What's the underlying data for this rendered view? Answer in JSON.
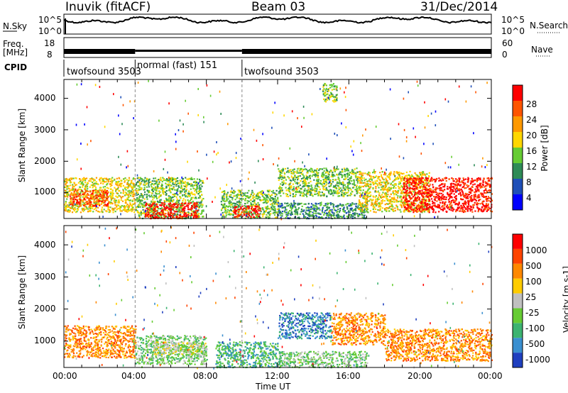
{
  "header": {
    "station": "Inuvik (fitACF)",
    "beam": "Beam 03",
    "date": "31/Dec/2014"
  },
  "top_panels": {
    "nsky_label": "N.Sky",
    "nsky_ticks": [
      "10^5",
      "10^0"
    ],
    "nsearch_label": "N.Search",
    "nsearch_ticks": [
      "10^5",
      "10^0"
    ],
    "freq_label_1": "Freq.",
    "freq_label_2": "[MHz]",
    "freq_ticks": [
      "18",
      "8"
    ],
    "nave_label": "Nave",
    "nave_ticks": [
      "60",
      "0"
    ],
    "cpid_label": "CPID",
    "cpid_segments": [
      {
        "label": "twofsound 3503",
        "start_h": 0,
        "end_h": 4
      },
      {
        "label": "normal (fast) 151",
        "start_h": 4,
        "end_h": 10
      },
      {
        "label": "twofsound 3503",
        "start_h": 10,
        "end_h": 24
      }
    ]
  },
  "chart_data": [
    {
      "type": "heatmap",
      "title": "",
      "xlabel": "",
      "ylabel": "Slant Range [km]",
      "xlim": [
        0,
        24
      ],
      "ylim": [
        180,
        4600
      ],
      "yticks": [
        "1000",
        "2000",
        "3000",
        "4000"
      ],
      "colorbar_label": "Power [dB]",
      "colorbar_ticks": [
        "28",
        "24",
        "20",
        "16",
        "12",
        "8",
        "4"
      ],
      "colorbar_colors": [
        "#0000ff",
        "#1f4fb8",
        "#2e8b57",
        "#66cc33",
        "#ffd700",
        "#ff9900",
        "#ff5500",
        "#ff0000"
      ],
      "regions": [
        {
          "t0": 0.0,
          "t1": 4.0,
          "r0": 400,
          "r1": 1500,
          "level": 4
        },
        {
          "t0": 0.3,
          "t1": 2.5,
          "r0": 600,
          "r1": 1100,
          "level": 6
        },
        {
          "t0": 4.0,
          "t1": 7.8,
          "r0": 200,
          "r1": 1500,
          "level": 3
        },
        {
          "t0": 4.5,
          "t1": 7.5,
          "r0": 200,
          "r1": 700,
          "level": 7
        },
        {
          "t0": 8.8,
          "t1": 12.0,
          "r0": 200,
          "r1": 1100,
          "level": 3
        },
        {
          "t0": 9.5,
          "t1": 11.0,
          "r0": 250,
          "r1": 600,
          "level": 7
        },
        {
          "t0": 12.0,
          "t1": 16.5,
          "r0": 900,
          "r1": 1800,
          "level": 3
        },
        {
          "t0": 12.0,
          "t1": 17.0,
          "r0": 200,
          "r1": 700,
          "level": 2
        },
        {
          "t0": 16.5,
          "t1": 20.5,
          "r0": 400,
          "r1": 1700,
          "level": 4
        },
        {
          "t0": 19.0,
          "t1": 24.0,
          "r0": 400,
          "r1": 1500,
          "level": 7
        },
        {
          "t0": 14.5,
          "t1": 15.3,
          "r0": 3900,
          "r1": 4500,
          "level": 3
        }
      ]
    },
    {
      "type": "heatmap",
      "title": "",
      "xlabel": "Time UT",
      "ylabel": "Slant Range [km]",
      "xlim": [
        0,
        24
      ],
      "ylim": [
        180,
        4600
      ],
      "xticks": [
        "00:00",
        "04:00",
        "08:00",
        "12:00",
        "16:00",
        "20:00",
        "00:00"
      ],
      "yticks": [
        "1000",
        "2000",
        "3000",
        "4000"
      ],
      "colorbar_label": "Velocity [m s-1]",
      "colorbar_ticks": [
        "1000",
        "500",
        "100",
        "25",
        "-25",
        "-100",
        "-500",
        "-1000"
      ],
      "colorbar_colors": [
        "#1f3fbf",
        "#3a8fd0",
        "#3cb371",
        "#66cc33",
        "#c0c0c0",
        "#ffcc00",
        "#ff8800",
        "#ff4400",
        "#ff0000"
      ],
      "regions": [
        {
          "t0": 0.0,
          "t1": 4.0,
          "r0": 500,
          "r1": 1500,
          "level": 6
        },
        {
          "t0": 4.0,
          "t1": 8.0,
          "r0": 300,
          "r1": 1200,
          "level": 3
        },
        {
          "t0": 5.0,
          "t1": 8.0,
          "r0": 600,
          "r1": 1000,
          "level": 4
        },
        {
          "t0": 8.5,
          "t1": 12.0,
          "r0": 200,
          "r1": 1000,
          "level": 2
        },
        {
          "t0": 12.0,
          "t1": 15.0,
          "r0": 1100,
          "r1": 1900,
          "level": 1
        },
        {
          "t0": 15.0,
          "t1": 18.0,
          "r0": 900,
          "r1": 1900,
          "level": 6
        },
        {
          "t0": 18.0,
          "t1": 24.0,
          "r0": 400,
          "r1": 1400,
          "level": 6
        },
        {
          "t0": 12.0,
          "t1": 17.0,
          "r0": 200,
          "r1": 700,
          "level": 3
        }
      ]
    }
  ]
}
